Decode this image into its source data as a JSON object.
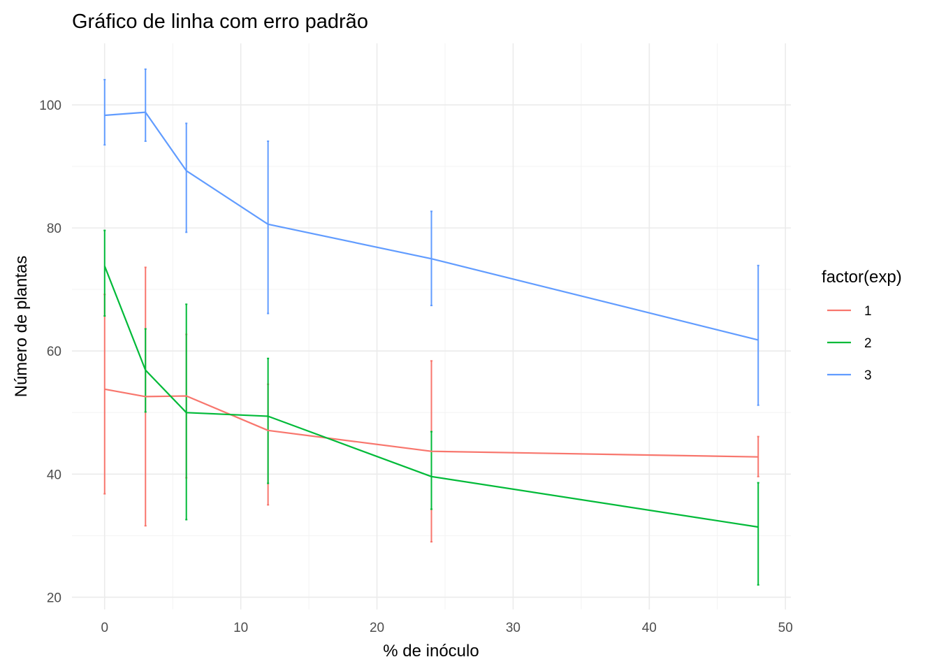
{
  "chart_data": {
    "type": "line",
    "title": "Gráfico de linha com erro padrão",
    "xlabel": "% de inóculo",
    "ylabel": "Número de plantas",
    "xlim": [
      -2.4,
      50.4
    ],
    "ylim": [
      18,
      110
    ],
    "x_ticks": [
      0,
      10,
      20,
      30,
      40,
      50
    ],
    "x_minor_ticks": [
      5,
      15,
      25,
      35,
      45
    ],
    "y_ticks": [
      20,
      40,
      60,
      80,
      100
    ],
    "y_minor_ticks": [
      30,
      50,
      70,
      90
    ],
    "x_tick_labels": [
      "0",
      "10",
      "20",
      "30",
      "40",
      "50"
    ],
    "y_tick_labels": [
      "20",
      "40",
      "60",
      "80",
      "100"
    ],
    "grid": true,
    "legend": {
      "title": "factor(exp)",
      "position": "right"
    },
    "x": [
      0,
      3,
      6,
      12,
      24,
      48
    ],
    "series": [
      {
        "name": "1",
        "color": "#F8766D",
        "values": [
          53.8,
          52.6,
          52.7,
          47.1,
          43.7,
          42.8
        ],
        "lower": [
          36.8,
          31.6,
          39.4,
          35.0,
          29.0,
          39.6
        ],
        "upper": [
          69.2,
          73.6,
          62.7,
          54.6,
          58.4,
          46.1
        ]
      },
      {
        "name": "2",
        "color": "#00BA38",
        "values": [
          73.8,
          56.9,
          50.0,
          49.4,
          39.6,
          31.4
        ],
        "lower": [
          65.7,
          50.1,
          32.6,
          38.5,
          34.3,
          22.0
        ],
        "upper": [
          79.6,
          63.6,
          67.6,
          58.8,
          46.9,
          38.6
        ]
      },
      {
        "name": "3",
        "color": "#619CFF",
        "values": [
          98.3,
          98.8,
          89.3,
          80.6,
          75.0,
          61.8
        ],
        "lower": [
          93.5,
          94.1,
          79.3,
          66.1,
          67.4,
          51.2
        ],
        "upper": [
          104.1,
          105.8,
          97.0,
          94.1,
          82.7,
          73.9
        ]
      }
    ]
  }
}
